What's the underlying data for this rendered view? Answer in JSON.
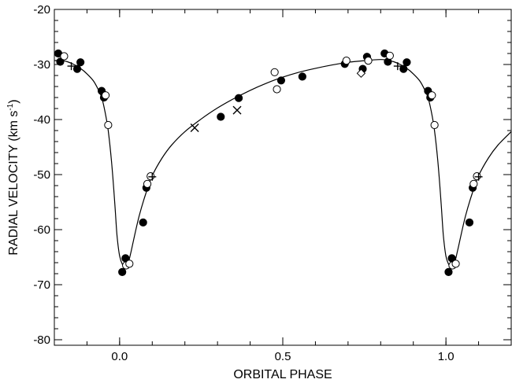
{
  "chart_data": {
    "type": "scatter",
    "xlabel": "ORBITAL PHASE",
    "ylabel": "RADIAL VELOCITY (km s",
    "ylabel_sup": "-1",
    "ylabel_close": ")",
    "xlim": [
      -0.2,
      1.2
    ],
    "ylim": [
      -81,
      -20
    ],
    "x_ticks": [
      {
        "value": 0.0,
        "label": "0.0"
      },
      {
        "value": 0.5,
        "label": "0.5"
      },
      {
        "value": 1.0,
        "label": "1.0"
      }
    ],
    "y_ticks": [
      {
        "value": -20,
        "label": "-20"
      },
      {
        "value": -30,
        "label": "-30"
      },
      {
        "value": -40,
        "label": "-40"
      },
      {
        "value": -50,
        "label": "-50"
      },
      {
        "value": -60,
        "label": "-60"
      },
      {
        "value": -70,
        "label": "-70"
      },
      {
        "value": -80,
        "label": "-80"
      }
    ],
    "x_minor_step": 0.1,
    "y_minor_step": 2,
    "grid": false,
    "series": [
      {
        "marker": "filled-circle",
        "points": [
          [
            -0.188,
            -28.0
          ],
          [
            -0.182,
            -29.5
          ],
          [
            -0.13,
            -30.8
          ],
          [
            -0.12,
            -29.6
          ],
          [
            -0.055,
            -34.8
          ],
          [
            -0.048,
            -36.0
          ],
          [
            0.008,
            -67.7
          ],
          [
            0.018,
            -65.2
          ],
          [
            0.072,
            -58.7
          ],
          [
            0.082,
            -52.4
          ],
          [
            0.31,
            -39.5
          ],
          [
            0.365,
            -36.1
          ],
          [
            0.495,
            -32.9
          ],
          [
            0.56,
            -32.2
          ],
          [
            0.69,
            -29.9
          ],
          [
            0.745,
            -30.8
          ],
          [
            0.758,
            -28.6
          ],
          [
            0.812,
            -28.0
          ],
          [
            0.822,
            -29.5
          ],
          [
            0.87,
            -30.8
          ],
          [
            0.88,
            -29.6
          ],
          [
            0.945,
            -34.8
          ],
          [
            0.952,
            -36.0
          ],
          [
            1.008,
            -67.7
          ],
          [
            1.018,
            -65.2
          ],
          [
            1.072,
            -58.7
          ],
          [
            1.082,
            -52.4
          ]
        ]
      },
      {
        "marker": "open-circle",
        "points": [
          [
            -0.17,
            -28.5
          ],
          [
            -0.043,
            -35.6
          ],
          [
            -0.035,
            -41.0
          ],
          [
            0.02,
            -66.5
          ],
          [
            0.03,
            -66.2
          ],
          [
            0.085,
            -51.7
          ],
          [
            0.095,
            -50.3
          ],
          [
            0.475,
            -31.4
          ],
          [
            0.482,
            -34.5
          ],
          [
            0.695,
            -29.3
          ],
          [
            0.762,
            -29.3
          ],
          [
            0.828,
            -28.4
          ],
          [
            0.957,
            -35.6
          ],
          [
            0.965,
            -41.0
          ],
          [
            1.02,
            -66.5
          ],
          [
            1.03,
            -66.2
          ],
          [
            1.085,
            -51.7
          ],
          [
            1.095,
            -50.3
          ]
        ]
      },
      {
        "marker": "plus",
        "points": [
          [
            -0.148,
            -30.3
          ],
          [
            0.1,
            -50.4
          ],
          [
            0.852,
            -30.3
          ],
          [
            1.1,
            -50.4
          ]
        ]
      },
      {
        "marker": "cross",
        "points": [
          [
            0.23,
            -41.5
          ],
          [
            0.36,
            -38.3
          ]
        ]
      },
      {
        "marker": "open-diamond",
        "points": [
          [
            0.74,
            -31.6
          ]
        ]
      }
    ],
    "model_curve": {
      "points": [
        [
          -0.2,
          -29.3
        ],
        [
          -0.18,
          -29.25
        ],
        [
          -0.16,
          -29.5
        ],
        [
          -0.14,
          -30.0
        ],
        [
          -0.12,
          -30.7
        ],
        [
          -0.1,
          -31.7
        ],
        [
          -0.08,
          -33.0
        ],
        [
          -0.065,
          -34.6
        ],
        [
          -0.055,
          -36.0
        ],
        [
          -0.045,
          -38.5
        ],
        [
          -0.035,
          -42.0
        ],
        [
          -0.025,
          -47.5
        ],
        [
          -0.015,
          -55.0
        ],
        [
          -0.008,
          -61.0
        ],
        [
          0.0,
          -64.8
        ],
        [
          0.01,
          -66.5
        ],
        [
          0.018,
          -66.9
        ],
        [
          0.026,
          -66.2
        ],
        [
          0.035,
          -64.0
        ],
        [
          0.045,
          -61.3
        ],
        [
          0.06,
          -57.5
        ],
        [
          0.08,
          -53.5
        ],
        [
          0.1,
          -50.2
        ],
        [
          0.13,
          -47.0
        ],
        [
          0.16,
          -44.6
        ],
        [
          0.2,
          -42.2
        ],
        [
          0.25,
          -39.9
        ],
        [
          0.3,
          -37.9
        ],
        [
          0.35,
          -36.2
        ],
        [
          0.4,
          -34.7
        ],
        [
          0.45,
          -33.4
        ],
        [
          0.5,
          -32.3
        ],
        [
          0.55,
          -31.4
        ],
        [
          0.6,
          -30.7
        ],
        [
          0.65,
          -30.1
        ],
        [
          0.7,
          -29.6
        ],
        [
          0.75,
          -29.3
        ],
        [
          0.8,
          -29.1
        ],
        [
          0.82,
          -29.25
        ],
        [
          0.84,
          -29.5
        ],
        [
          0.86,
          -30.0
        ],
        [
          0.88,
          -30.7
        ],
        [
          0.9,
          -31.7
        ],
        [
          0.92,
          -33.0
        ],
        [
          0.935,
          -34.6
        ],
        [
          0.945,
          -36.0
        ],
        [
          0.955,
          -38.5
        ],
        [
          0.965,
          -42.0
        ],
        [
          0.975,
          -47.5
        ],
        [
          0.985,
          -55.0
        ],
        [
          0.992,
          -61.0
        ],
        [
          1.0,
          -64.8
        ],
        [
          1.01,
          -66.5
        ],
        [
          1.018,
          -66.9
        ],
        [
          1.026,
          -66.2
        ],
        [
          1.035,
          -64.0
        ],
        [
          1.045,
          -61.3
        ],
        [
          1.06,
          -57.5
        ],
        [
          1.08,
          -53.5
        ],
        [
          1.1,
          -50.2
        ],
        [
          1.13,
          -47.0
        ],
        [
          1.16,
          -44.6
        ],
        [
          1.2,
          -42.2
        ]
      ]
    }
  }
}
